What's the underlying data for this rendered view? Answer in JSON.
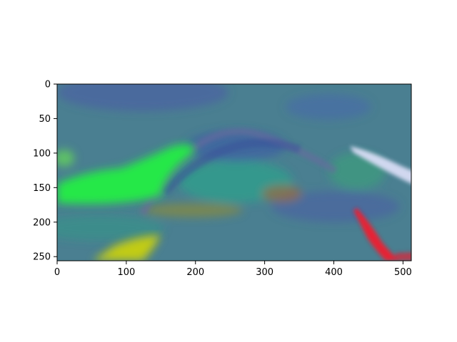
{
  "chart_data": {
    "type": "heatmap",
    "title": "",
    "xlabel": "",
    "ylabel": "",
    "image_width": 512,
    "image_height": 256,
    "xlim": [
      0,
      512
    ],
    "ylim": [
      256,
      0
    ],
    "x_ticks": [
      0,
      100,
      200,
      300,
      400,
      500
    ],
    "y_ticks": [
      0,
      50,
      100,
      150,
      200,
      250
    ],
    "colors": {
      "background": "#4a7f91",
      "green": "#22ee44",
      "yellow": "#c8d010",
      "red": "#ee1c30",
      "lavender": "#d8dcf4",
      "teal": "#2aa88a",
      "olive": "#8a8a3a",
      "violet": "#4a5aa8"
    }
  }
}
